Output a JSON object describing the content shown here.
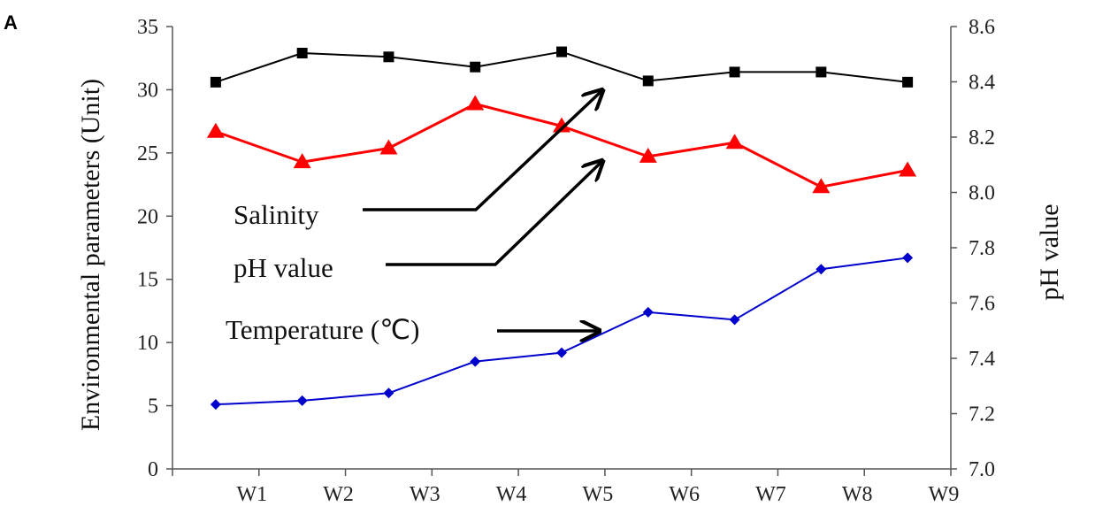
{
  "panel_label": "A",
  "chart_data": {
    "type": "line",
    "categories": [
      "W1",
      "W2",
      "W3",
      "W4",
      "W5",
      "W6",
      "W7",
      "W8",
      "W9"
    ],
    "x_points": [
      "W0.5",
      "W1.5",
      "W2.5",
      "W3.5",
      "W4.5",
      "W5.5",
      "W6.5",
      "W7.5",
      "W8.5"
    ],
    "ylabel": "Environmental parameters (Unit)",
    "y2label": "pH value",
    "ylim": [
      0,
      35
    ],
    "yticks": [
      "0",
      "5",
      "10",
      "15",
      "20",
      "25",
      "30",
      "35"
    ],
    "y2lim": [
      7.0,
      8.6
    ],
    "y2ticks": [
      "7.0",
      "7.2",
      "7.4",
      "7.6",
      "7.8",
      "8.0",
      "8.2",
      "8.4",
      "8.6"
    ],
    "series": [
      {
        "name": "Salinity",
        "axis": "left",
        "color": "#000000",
        "marker": "square",
        "values": [
          30.6,
          32.9,
          32.6,
          31.8,
          33.0,
          30.7,
          31.4,
          31.4,
          30.6
        ]
      },
      {
        "name": "pH value",
        "axis": "right",
        "color": "#ff0000",
        "marker": "triangle",
        "values": [
          8.22,
          8.11,
          8.16,
          8.32,
          8.24,
          8.13,
          8.18,
          8.02,
          8.08
        ]
      },
      {
        "name": "Temperature (℃)",
        "axis": "left",
        "color": "#0000cc",
        "marker": "diamond",
        "values": [
          5.1,
          5.4,
          6.0,
          8.5,
          9.2,
          12.4,
          11.8,
          15.8,
          16.7
        ]
      }
    ],
    "annotations": [
      {
        "label": "Salinity",
        "target": "Salinity"
      },
      {
        "label": "pH value",
        "target": "pH value"
      },
      {
        "label": "Temperature (℃)",
        "target": "Temperature (℃)"
      }
    ]
  }
}
